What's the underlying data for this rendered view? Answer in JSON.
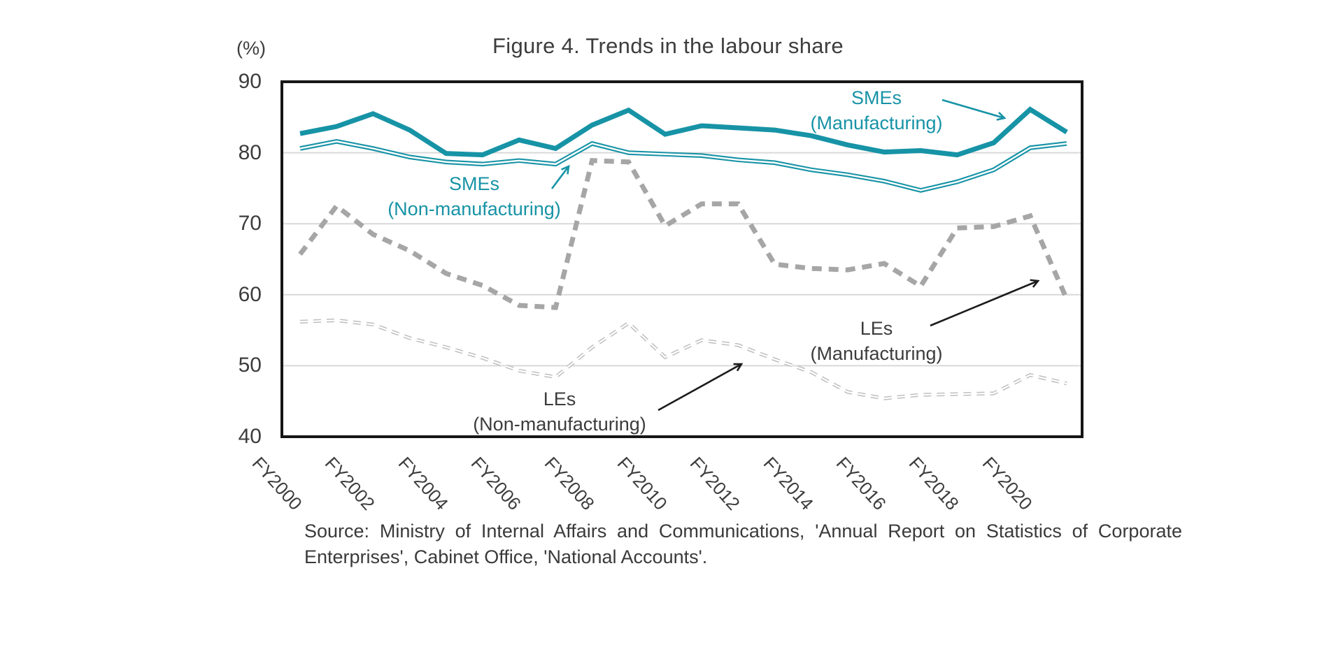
{
  "title": "Figure 4. Trends in the labour share",
  "y_axis": {
    "unit_label": "(%)",
    "ticks": [
      90,
      80,
      70,
      60,
      50,
      40
    ],
    "min": 40,
    "max": 90
  },
  "x_axis": {
    "tick_labels": [
      "FY2000",
      "FY2002",
      "FY2004",
      "FY2006",
      "FY2008",
      "FY2010",
      "FY2012",
      "FY2014",
      "FY2016",
      "FY2018",
      "FY2020"
    ]
  },
  "annotations": {
    "smes_mfg": {
      "line1": "SMEs",
      "line2": "(Manufacturing)"
    },
    "smes_nonmfg": {
      "line1": "SMEs",
      "line2": "(Non-manufacturing)"
    },
    "les_mfg": {
      "line1": "LEs",
      "line2": "(Manufacturing)"
    },
    "les_nonmfg": {
      "line1": "LEs",
      "line2": "(Non-manufacturing)"
    }
  },
  "source": {
    "line1": "Source: Ministry of Internal Affairs and Communications, 'Annual Report on Statistics of Corporate",
    "line2": "Enterprises', Cabinet Office, 'National Accounts'."
  },
  "colors": {
    "teal": "#1793A6",
    "gray_thick": "#A6A6A6",
    "gray_thin": "#BFBFBF",
    "gridline": "#D9D9D9",
    "border": "#161616",
    "text": "#3c3c3c"
  },
  "chart_data": {
    "type": "line",
    "title": "Figure 4. Trends in the labour share",
    "y_unit": "%",
    "ylim": [
      40,
      90
    ],
    "grid": "horizontal",
    "legend_position": "inline-annotations",
    "x": [
      "FY2000",
      "FY2001",
      "FY2002",
      "FY2003",
      "FY2004",
      "FY2005",
      "FY2006",
      "FY2007",
      "FY2008",
      "FY2009",
      "FY2010",
      "FY2011",
      "FY2012",
      "FY2013",
      "FY2014",
      "FY2015",
      "FY2016",
      "FY2017",
      "FY2018",
      "FY2019",
      "FY2020",
      "FY2021"
    ],
    "series": [
      {
        "name": "SMEs (Manufacturing)",
        "key": "smes_manufacturing",
        "style": "solid-thick",
        "color": "#1793A6",
        "values": [
          82.7,
          83.7,
          85.5,
          83.2,
          79.9,
          79.7,
          81.8,
          80.6,
          83.9,
          86.0,
          82.6,
          83.8,
          83.5,
          83.2,
          82.4,
          81.1,
          80.1,
          80.3,
          79.7,
          81.4,
          86.1,
          82.9
        ]
      },
      {
        "name": "SMEs (Non-manufacturing)",
        "key": "smes_non_manufacturing",
        "style": "double-line",
        "color": "#1793A6",
        "values": [
          80.6,
          81.6,
          80.6,
          79.4,
          78.7,
          78.4,
          78.9,
          78.4,
          81.3,
          80.0,
          79.8,
          79.6,
          79.0,
          78.6,
          77.6,
          76.9,
          76.0,
          74.7,
          75.9,
          77.6,
          80.7,
          81.3
        ]
      },
      {
        "name": "LEs (Manufacturing)",
        "key": "les_manufacturing",
        "style": "dashed-thick",
        "color": "#A6A6A6",
        "values": [
          65.7,
          72.5,
          68.5,
          66.2,
          63.0,
          61.3,
          58.5,
          58.2,
          78.9,
          78.7,
          69.7,
          72.8,
          72.8,
          64.3,
          63.7,
          63.5,
          64.4,
          61.2,
          69.4,
          69.6,
          71.1,
          59.4
        ]
      },
      {
        "name": "LEs (Non-manufacturing)",
        "key": "les_non_manufacturing",
        "style": "dashed-hollow",
        "color": "#BFBFBF",
        "values": [
          56.2,
          56.4,
          55.8,
          53.9,
          52.6,
          51.1,
          49.3,
          48.4,
          52.6,
          56.0,
          51.2,
          53.6,
          52.9,
          50.9,
          49.1,
          46.3,
          45.4,
          45.9,
          46.0,
          46.1,
          48.7,
          47.5
        ]
      }
    ]
  }
}
